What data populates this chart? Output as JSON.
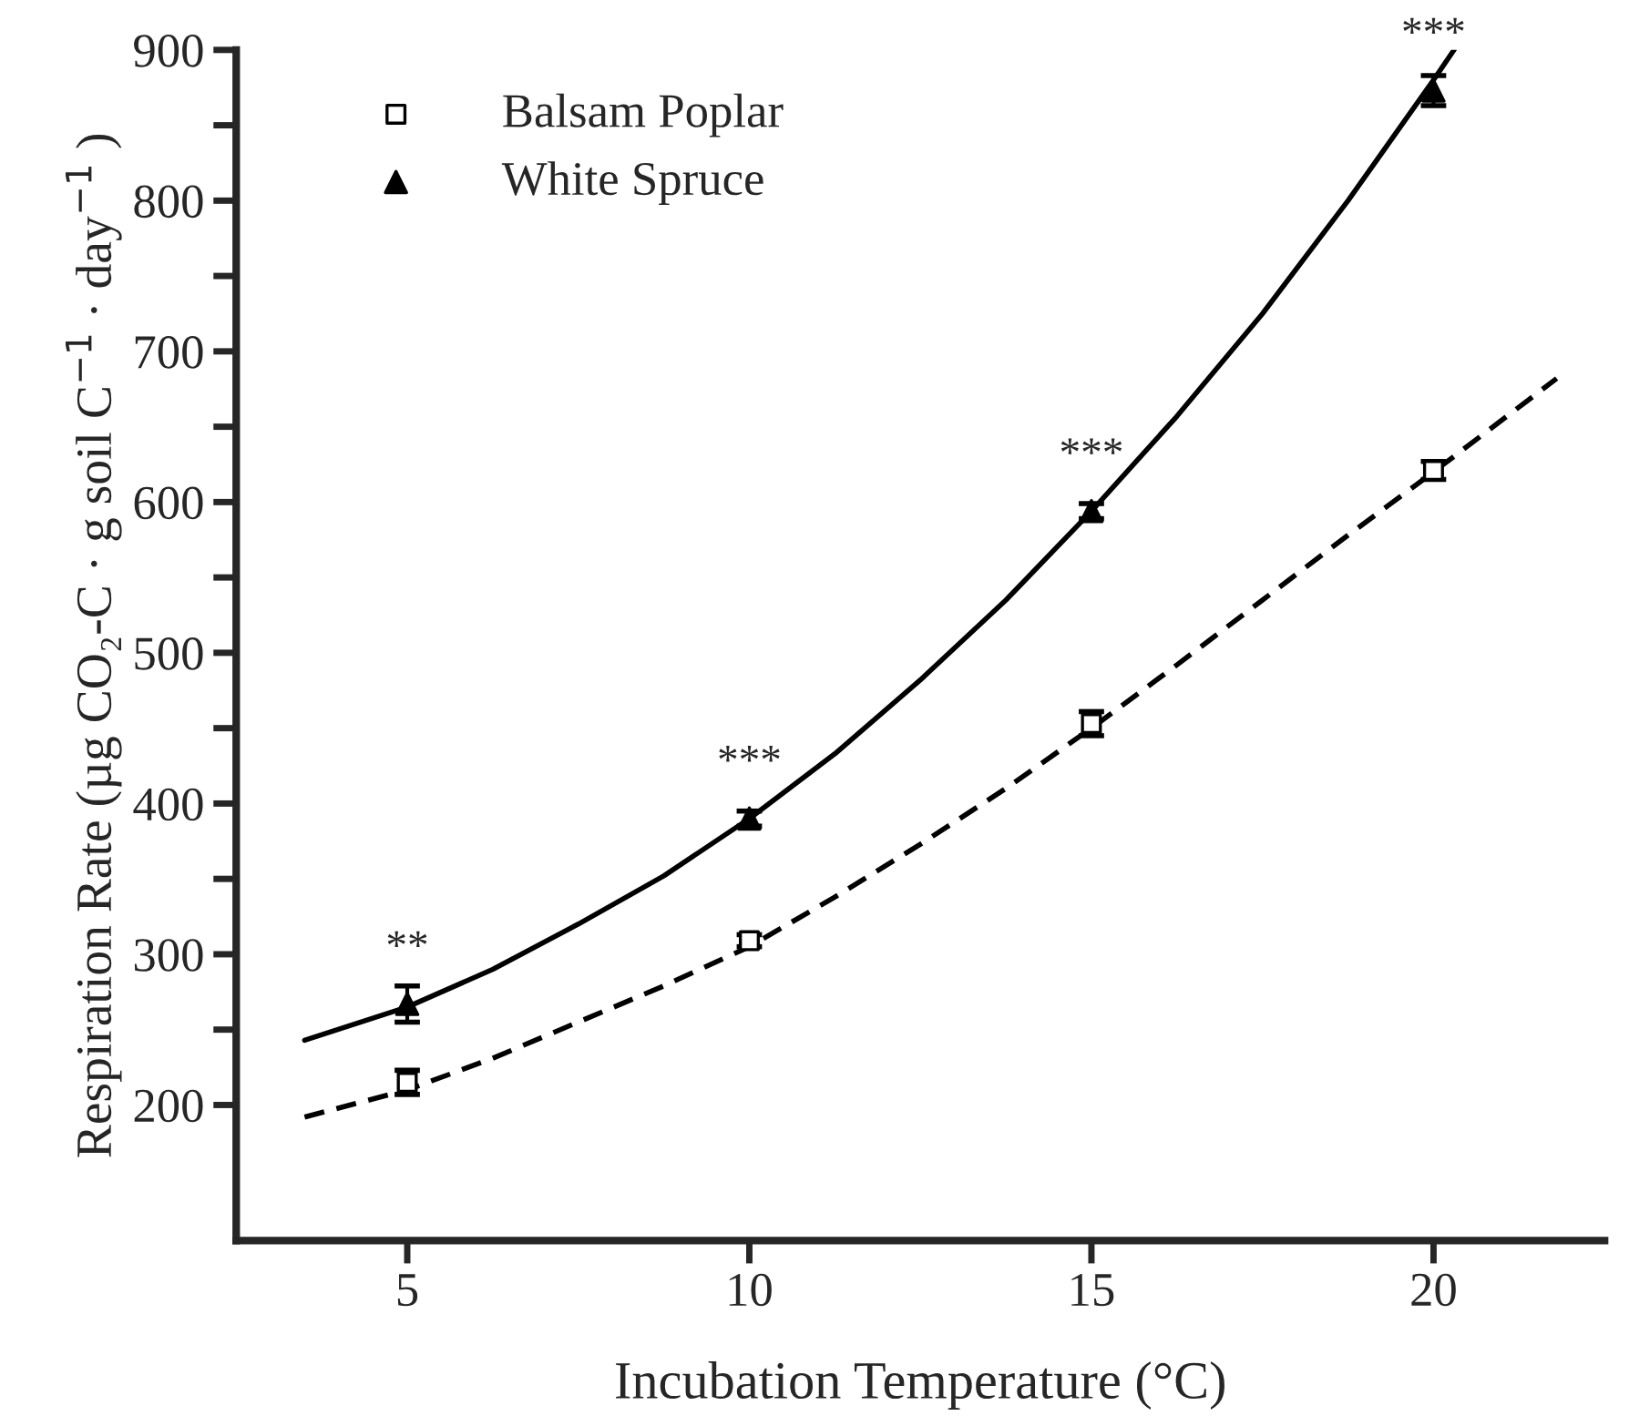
{
  "chart_data": {
    "type": "scatter",
    "xlabel": "Incubation Temperature (°C)",
    "ylabel": "Respiration Rate (µg CO₂-C · g soil C$^{−1}$ · day$^{−1}$ )",
    "xlim": [
      2.5,
      22.5
    ],
    "xticks": [
      5,
      10,
      15,
      20
    ],
    "ylim": [
      110,
      900
    ],
    "yticks": [
      200,
      {
        "value": 250,
        "label": null
      },
      300,
      {
        "value": 350,
        "label": null
      },
      400,
      {
        "value": 450,
        "label": null
      },
      500,
      {
        "value": 550,
        "label": null
      },
      600,
      {
        "value": 650,
        "label": null
      },
      700,
      {
        "value": 750,
        "label": null
      },
      800,
      {
        "value": 850,
        "label": null
      },
      900
    ],
    "x": [
      5,
      10,
      15,
      20
    ],
    "series": [
      {
        "name": "Balsam Poplar",
        "color": "#000000",
        "marker": "square",
        "values": [
          215,
          309,
          453,
          621
        ],
        "errors": [
          8,
          4,
          8,
          6
        ]
      },
      {
        "name": "White Spruce",
        "color": "#000000",
        "marker": "triangle",
        "values": [
          267,
          390,
          594,
          873
        ],
        "errors": [
          12,
          5,
          5,
          10
        ]
      },
      {
        "type": "line",
        "color": "#000000",
        "line_style": "dashed",
        "marker": "none",
        "x": [
          3.5,
          5,
          6.25,
          7.5,
          8.75,
          10,
          11.25,
          12.5,
          13.75,
          15,
          16.25,
          17.5,
          18.75,
          20,
          21.8
        ],
        "values": [
          192,
          210,
          231,
          255,
          279,
          305,
          338,
          373,
          410,
          450,
          492,
          535,
          578,
          620,
          682
        ]
      },
      {
        "type": "line",
        "color": "#000000",
        "line_style": "solid",
        "marker": "none",
        "x": [
          3.5,
          5,
          6.25,
          7.5,
          8.75,
          10,
          11.25,
          12.5,
          13.75,
          15,
          16.25,
          17.5,
          18.75,
          20,
          20.3
        ],
        "values": [
          243,
          265,
          290,
          320,
          352,
          390,
          433,
          482,
          535,
          594,
          657,
          725,
          800,
          880,
          900
        ]
      }
    ],
    "annotations": [
      {
        "text": "**",
        "x": 5,
        "y": 267
      },
      {
        "text": "***",
        "x": 10,
        "y": 390
      },
      {
        "text": "***",
        "x": 15,
        "y": 594
      },
      {
        "text": "***",
        "x": 20,
        "y": 873
      }
    ],
    "legend": "top left",
    "grid": false
  }
}
